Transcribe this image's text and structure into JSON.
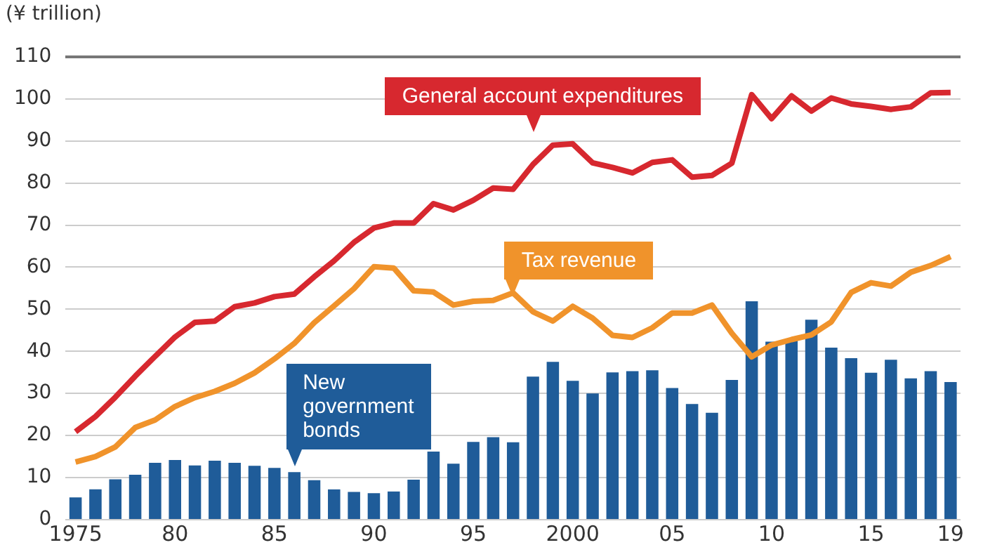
{
  "chart_data": {
    "type": "bar",
    "ylabel": "(¥ trillion)",
    "categories": [
      "1975",
      null,
      null,
      null,
      null,
      "80",
      null,
      null,
      null,
      null,
      "85",
      null,
      null,
      null,
      null,
      "90",
      null,
      null,
      null,
      null,
      "95",
      null,
      null,
      null,
      null,
      "2000",
      null,
      null,
      null,
      null,
      "05",
      null,
      null,
      null,
      null,
      "10",
      null,
      null,
      null,
      null,
      "15",
      null,
      null,
      null,
      "19"
    ],
    "series": [
      {
        "name": "General account expenditures",
        "type": "line",
        "color": "#d7282f",
        "values": [
          20.9,
          24.5,
          29.1,
          34.1,
          38.8,
          43.4,
          46.9,
          47.2,
          50.6,
          51.5,
          53.0,
          53.6,
          57.7,
          61.5,
          65.9,
          69.3,
          70.5,
          70.5,
          75.1,
          73.6,
          75.9,
          78.8,
          78.5,
          84.4,
          89.0,
          89.3,
          84.8,
          83.7,
          82.4,
          84.9,
          85.5,
          81.4,
          81.8,
          84.7,
          101.0,
          95.3,
          100.7,
          97.1,
          100.2,
          98.8,
          98.2,
          97.5,
          98.1,
          101.4,
          101.5
        ]
      },
      {
        "name": "Tax revenue",
        "type": "line",
        "color": "#f0932b",
        "values": [
          13.7,
          15.0,
          17.3,
          21.9,
          23.7,
          26.9,
          29.0,
          30.5,
          32.4,
          34.9,
          38.2,
          41.9,
          46.8,
          50.8,
          54.9,
          60.1,
          59.8,
          54.4,
          54.1,
          51.0,
          51.9,
          52.1,
          53.9,
          49.4,
          47.2,
          50.7,
          47.9,
          43.8,
          43.3,
          45.6,
          49.1,
          49.1,
          51.0,
          44.3,
          38.7,
          41.5,
          42.8,
          43.9,
          47.0,
          54.0,
          56.3,
          55.5,
          58.8,
          60.4,
          62.5
        ]
      },
      {
        "name": "New government bonds",
        "color": "#1f5c99",
        "values": [
          5.3,
          7.2,
          9.6,
          10.7,
          13.5,
          14.2,
          12.9,
          14.0,
          13.5,
          12.8,
          12.3,
          11.3,
          9.4,
          7.2,
          6.6,
          6.3,
          6.7,
          9.5,
          16.2,
          13.3,
          18.5,
          19.6,
          18.4,
          34.0,
          37.5,
          33.0,
          30.0,
          35.0,
          35.3,
          35.5,
          31.3,
          27.5,
          25.4,
          33.2,
          51.9,
          42.3,
          42.8,
          47.5,
          40.9,
          38.4,
          34.9,
          38.0,
          33.6,
          35.3,
          32.7
        ]
      }
    ],
    "ylim": [
      0,
      110
    ],
    "yticks": [
      0,
      10,
      20,
      30,
      40,
      50,
      60,
      70,
      80,
      90,
      100,
      110
    ],
    "grid": "y",
    "legend": false
  }
}
